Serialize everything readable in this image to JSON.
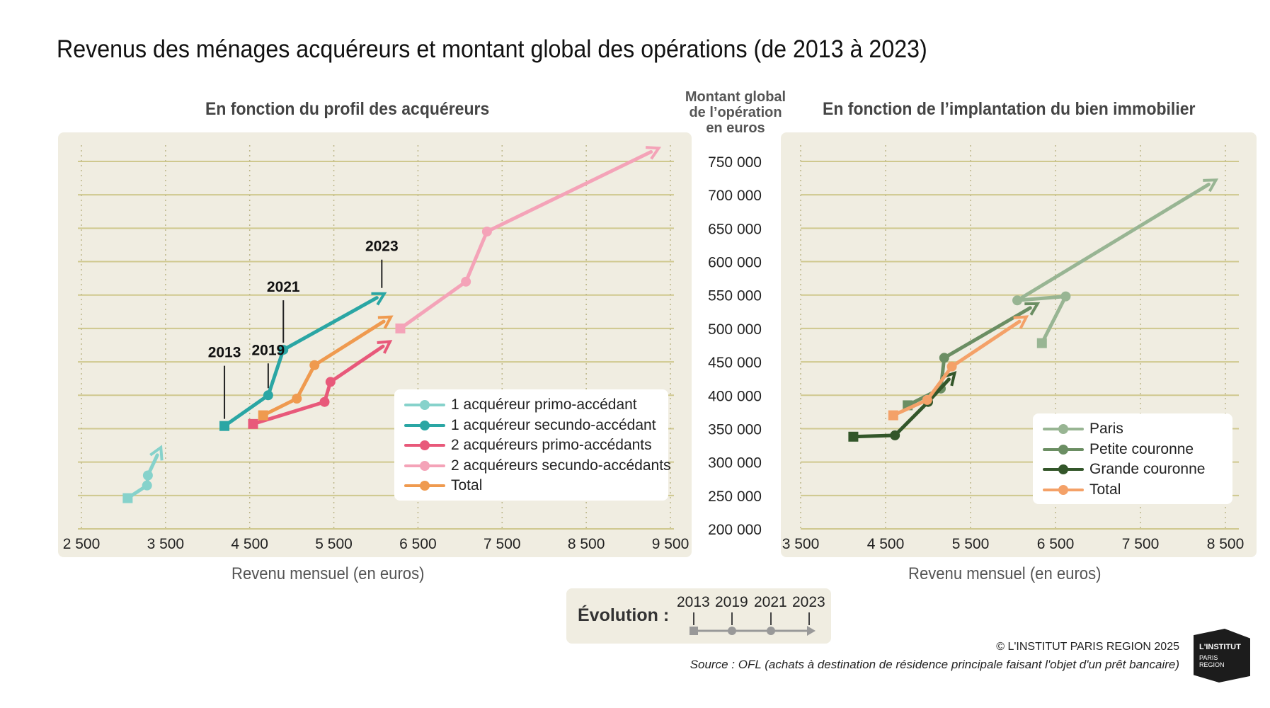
{
  "title": "Revenus des ménages acquéreurs et montant global des opérations (de 2013 à 2023)",
  "left": {
    "subtitle": "En fonction du profil des acquéreurs",
    "xlabel": "Revenu  mensuel  (en euros)",
    "year_callouts": [
      "2013",
      "2019",
      "2021",
      "2023"
    ]
  },
  "right": {
    "subtitle": "En fonction de l’implantation du bien immobilier",
    "xlabel": "Revenu  mensuel  (en euros)"
  },
  "y_unit": [
    "Montant global",
    "de l’opération",
    "en euros"
  ],
  "legend_left": [
    {
      "label": "1 acquéreur primo-accédant",
      "color": "#86d2cb"
    },
    {
      "label": "1 acquéreur secundo-accédant",
      "color": "#2aa6a4"
    },
    {
      "label": "2 acquéreurs primo-accédants",
      "color": "#e8597a"
    },
    {
      "label": "2 acquéreurs secundo-accédants",
      "color": "#f4a3b8"
    },
    {
      "label": "Total",
      "color": "#ef9a4f"
    }
  ],
  "legend_right": [
    {
      "label": "Paris",
      "color": "#98b593"
    },
    {
      "label": "Petite couronne",
      "color": "#6b8e63"
    },
    {
      "label": "Grande couronne",
      "color": "#33562a"
    },
    {
      "label": "Total",
      "color": "#f4a168"
    }
  ],
  "evolution": {
    "label": "Évolution  :",
    "years": [
      "2013",
      "2019",
      "2021",
      "2023"
    ]
  },
  "copyright": "© L'INSTITUT PARIS REGION 2025",
  "source": "Source : OFL (achats à destination de résidence principale faisant l'objet d'un prêt bancaire)",
  "logo": {
    "line1": "L'INSTITUT",
    "line2": "PARIS REGION"
  },
  "chart_data": [
    {
      "type": "line",
      "title": "En fonction du profil des acquéreurs",
      "xlabel": "Revenu mensuel (en euros)",
      "ylabel": "Montant global de l’opération en euros",
      "xlim": [
        2500,
        9700
      ],
      "ylim": [
        200000,
        750000
      ],
      "xticks": [
        2500,
        3500,
        4500,
        5500,
        6500,
        7500,
        8500,
        9500
      ],
      "xtick_labels": [
        "2 500",
        "3 500",
        "4 500",
        "5 500",
        "6 500",
        "7 500",
        "8 500",
        "9 500"
      ],
      "years": [
        "2013",
        "2019",
        "2021",
        "2023"
      ],
      "series": [
        {
          "name": "1 acquéreur primo-accédant",
          "color": "#86d2cb",
          "x": [
            3050,
            3280,
            3290,
            3430
          ],
          "y": [
            246000,
            265000,
            280000,
            318000
          ]
        },
        {
          "name": "1 acquéreur secundo-accédant",
          "color": "#2aa6a4",
          "x": [
            4200,
            4720,
            4900,
            6070
          ],
          "y": [
            354000,
            400000,
            468000,
            550000
          ]
        },
        {
          "name": "2 acquéreurs primo-accédants",
          "color": "#e8597a",
          "x": [
            4540,
            5390,
            5460,
            6140
          ],
          "y": [
            357000,
            390000,
            420000,
            478000
          ]
        },
        {
          "name": "2 acquéreurs secundo-accédants",
          "color": "#f4a3b8",
          "x": [
            6290,
            7070,
            7320,
            9330
          ],
          "y": [
            500000,
            570000,
            645000,
            768000
          ]
        },
        {
          "name": "Total",
          "color": "#ef9a4f",
          "x": [
            4660,
            5060,
            5270,
            6150
          ],
          "y": [
            370000,
            395000,
            445000,
            515000
          ]
        }
      ]
    },
    {
      "type": "line",
      "title": "En fonction de l’implantation du bien immobilier",
      "xlabel": "Revenu mensuel (en euros)",
      "ylabel": "Montant global de l’opération en euros",
      "xlim": [
        3500,
        8700
      ],
      "ylim": [
        200000,
        750000
      ],
      "xticks": [
        3500,
        4500,
        5500,
        6500,
        7500,
        8500
      ],
      "xtick_labels": [
        "3 500",
        "4 500",
        "5 500",
        "6 500",
        "7 500",
        "8 500"
      ],
      "years": [
        "2013",
        "2019",
        "2021",
        "2023"
      ],
      "series": [
        {
          "name": "Paris",
          "color": "#98b593",
          "x": [
            6340,
            6620,
            6050,
            8360
          ],
          "y": [
            478000,
            548000,
            542000,
            720000
          ]
        },
        {
          "name": "Petite couronne",
          "color": "#6b8e63",
          "x": [
            4760,
            5150,
            5190,
            6260
          ],
          "y": [
            385000,
            410000,
            456000,
            535000
          ]
        },
        {
          "name": "Grande couronne",
          "color": "#33562a",
          "x": [
            4120,
            4610,
            5000,
            5290
          ],
          "y": [
            338000,
            340000,
            390000,
            430000
          ]
        },
        {
          "name": "Total",
          "color": "#f4a168",
          "x": [
            4590,
            4990,
            5280,
            6130
          ],
          "y": [
            370000,
            393000,
            443000,
            515000
          ]
        }
      ]
    }
  ],
  "y_axis": {
    "ticks": [
      200000,
      250000,
      300000,
      350000,
      400000,
      450000,
      500000,
      550000,
      600000,
      650000,
      700000,
      750000
    ],
    "tick_labels": [
      "200 000",
      "250 000",
      "300 000",
      "350 000",
      "400 000",
      "450 000",
      "500 000",
      "550 000",
      "600 000",
      "650 000",
      "700 000",
      "750 000"
    ]
  }
}
